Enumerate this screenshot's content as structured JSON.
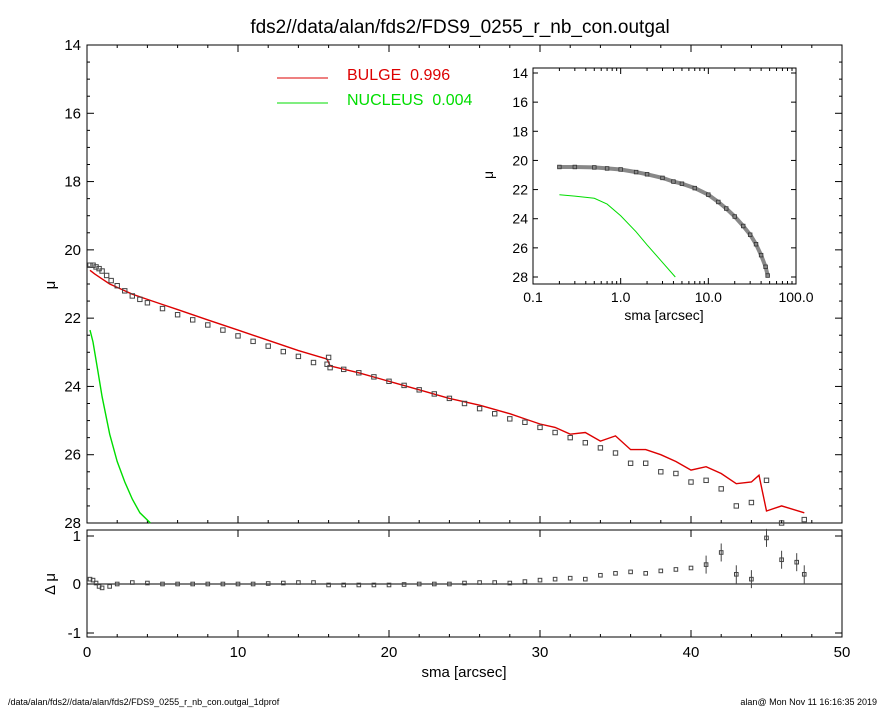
{
  "title": "fds2//data/alan/fds2/FDS9_0255_r_nb_con.outgal",
  "footer_left": "/data/alan/fds2//data/alan/fds2/FDS9_0255_r_nb_con.outgal_1dprof",
  "footer_right": "alan@  Mon Nov 11 16:16:35 2019",
  "colors": {
    "data": "#444444",
    "bulge": "#dd0000",
    "nucleus": "#00dd00",
    "axis": "#000000"
  },
  "chart_data": [
    {
      "type": "line",
      "panel": "main",
      "xlabel": "sma [arcsec]",
      "ylabel": "μ",
      "xlim": [
        0,
        50
      ],
      "ylim": [
        28,
        14
      ],
      "yinverted": true,
      "x_ticks": [
        0,
        10,
        20,
        30,
        40,
        50
      ],
      "y_ticks": [
        14,
        16,
        18,
        20,
        22,
        24,
        26,
        28
      ],
      "legend": {
        "placement": "top-center",
        "entries": [
          {
            "label": "BULGE  0.996",
            "color": "#dd0000"
          },
          {
            "label": "NUCLEUS  0.004",
            "color": "#00dd00"
          }
        ]
      },
      "series": [
        {
          "kind": "scatter",
          "x": [
            0.2,
            0.4,
            0.6,
            0.8,
            1.0,
            1.3,
            1.6,
            2.0,
            2.5,
            3.0,
            3.5,
            4.0,
            5.0,
            6.0,
            7.0,
            8.0,
            9.0,
            10.0,
            11.0,
            12.0,
            13.0,
            14.0,
            15.0,
            15.9,
            16.0,
            16.1,
            17.0,
            18.0,
            19.0,
            20.0,
            21.0,
            22.0,
            23.0,
            24.0,
            25.0,
            26.0,
            27.0,
            28.0,
            29.0,
            30.0,
            31.0,
            32.0,
            33.0,
            34.0,
            35.0,
            36.0,
            37.0,
            38.0,
            39.0,
            40.0,
            41.0,
            42.0,
            43.0,
            44.0,
            45.0,
            46.0,
            47.5
          ],
          "values": [
            20.45,
            20.45,
            20.5,
            20.55,
            20.62,
            20.75,
            20.9,
            21.05,
            21.2,
            21.35,
            21.45,
            21.55,
            21.72,
            21.9,
            22.05,
            22.2,
            22.35,
            22.52,
            22.68,
            22.82,
            22.98,
            23.12,
            23.3,
            23.35,
            23.15,
            23.45,
            23.5,
            23.6,
            23.72,
            23.85,
            23.97,
            24.1,
            24.22,
            24.35,
            24.5,
            24.65,
            24.8,
            24.95,
            25.05,
            25.2,
            25.35,
            25.5,
            25.65,
            25.8,
            25.95,
            26.25,
            26.25,
            26.5,
            26.55,
            26.8,
            26.75,
            27.0,
            27.5,
            27.4,
            26.75,
            28.0,
            27.9
          ]
        },
        {
          "name": "BULGE",
          "kind": "line",
          "color": "#dd0000",
          "x": [
            0.2,
            0.5,
            1.0,
            1.5,
            2.0,
            3.0,
            4.0,
            5.0,
            6.0,
            8.0,
            10.0,
            12.0,
            14.0,
            15.9,
            16.1,
            18.0,
            20.0,
            22.0,
            24.0,
            26.0,
            28.0,
            29.0,
            30.0,
            31.0,
            32.0,
            33.0,
            34.0,
            35.0,
            36.0,
            37.0,
            38.0,
            39.0,
            40.0,
            41.0,
            42.0,
            43.0,
            44.0,
            44.5,
            45.0,
            46.0,
            47.5
          ],
          "values": [
            20.6,
            20.7,
            20.85,
            21.0,
            21.1,
            21.3,
            21.45,
            21.6,
            21.75,
            22.05,
            22.35,
            22.65,
            22.95,
            23.2,
            23.4,
            23.6,
            23.85,
            24.1,
            24.35,
            24.55,
            24.8,
            24.95,
            25.1,
            25.2,
            25.4,
            25.35,
            25.6,
            25.45,
            25.85,
            25.85,
            26.0,
            26.2,
            26.45,
            26.35,
            26.55,
            26.85,
            26.8,
            26.6,
            27.65,
            27.5,
            27.7
          ]
        },
        {
          "name": "NUCLEUS",
          "kind": "line",
          "color": "#00dd00",
          "x": [
            0.2,
            0.4,
            0.7,
            1.0,
            1.5,
            2.0,
            2.5,
            3.0,
            3.5,
            4.2
          ],
          "values": [
            22.35,
            22.7,
            23.5,
            24.3,
            25.4,
            26.2,
            26.8,
            27.3,
            27.7,
            28.0
          ]
        }
      ]
    },
    {
      "type": "scatter",
      "panel": "residuals",
      "xlabel": "sma [arcsec]",
      "ylabel": "Δ μ",
      "xlim": [
        0,
        50
      ],
      "ylim": [
        -1,
        1
      ],
      "x_ticks": [
        0,
        10,
        20,
        30,
        40,
        50
      ],
      "y_ticks": [
        -1,
        0,
        1
      ],
      "x": [
        0.2,
        0.4,
        0.6,
        0.8,
        1.0,
        1.5,
        2.0,
        3.0,
        4.0,
        5.0,
        6.0,
        7.0,
        8.0,
        9.0,
        10.0,
        11.0,
        12.0,
        13.0,
        14.0,
        15.0,
        16.0,
        17.0,
        18.0,
        19.0,
        20.0,
        21.0,
        22.0,
        23.0,
        24.0,
        25.0,
        26.0,
        27.0,
        28.0,
        29.0,
        30.0,
        31.0,
        32.0,
        33.0,
        34.0,
        35.0,
        36.0,
        37.0,
        38.0,
        39.0,
        40.0,
        41.0,
        42.0,
        43.0,
        44.0,
        45.0,
        46.0,
        47.0,
        47.5
      ],
      "values": [
        0.1,
        0.08,
        0.02,
        -0.05,
        -0.08,
        -0.05,
        0.0,
        0.03,
        0.02,
        0.0,
        0.0,
        0.0,
        0.0,
        0.0,
        0.0,
        0.0,
        0.01,
        0.02,
        0.03,
        0.03,
        -0.02,
        -0.02,
        -0.02,
        -0.02,
        -0.02,
        -0.01,
        0.0,
        0.0,
        0.0,
        0.02,
        0.03,
        0.03,
        0.02,
        0.05,
        0.08,
        0.1,
        0.12,
        0.1,
        0.18,
        0.22,
        0.25,
        0.22,
        0.27,
        0.3,
        0.33,
        0.4,
        0.65,
        0.2,
        0.1,
        0.95,
        0.5,
        0.45,
        0.2
      ]
    },
    {
      "type": "line",
      "panel": "inset",
      "xlabel": "sma [arcsec]",
      "ylabel": "μ",
      "xscale": "log",
      "xlim": [
        0.1,
        100
      ],
      "ylim": [
        28,
        14
      ],
      "yinverted": true,
      "x_tick_labels": [
        "0.1",
        "1.0",
        "10.0",
        "100.0"
      ],
      "y_ticks": [
        14,
        16,
        18,
        20,
        22,
        24,
        26,
        28
      ],
      "series": [
        {
          "kind": "scatter",
          "x": [
            0.2,
            0.3,
            0.5,
            0.7,
            1.0,
            1.5,
            2.0,
            3.0,
            4.0,
            5.0,
            7.0,
            10.0,
            13.0,
            16.0,
            20.0,
            25.0,
            30.0,
            35.0,
            40.0,
            45.0,
            47.5
          ],
          "values": [
            20.45,
            20.45,
            20.48,
            20.55,
            20.62,
            20.8,
            20.95,
            21.2,
            21.45,
            21.6,
            21.9,
            22.35,
            22.85,
            23.3,
            23.85,
            24.5,
            25.1,
            25.75,
            26.5,
            27.3,
            27.9
          ]
        },
        {
          "name": "NUCLEUS",
          "kind": "line",
          "color": "#00dd00",
          "x": [
            0.2,
            0.3,
            0.5,
            0.7,
            1.0,
            1.5,
            2.0,
            3.0,
            4.2
          ],
          "values": [
            22.35,
            22.45,
            22.6,
            23.0,
            23.8,
            24.9,
            25.8,
            27.0,
            28.0
          ]
        }
      ]
    }
  ]
}
